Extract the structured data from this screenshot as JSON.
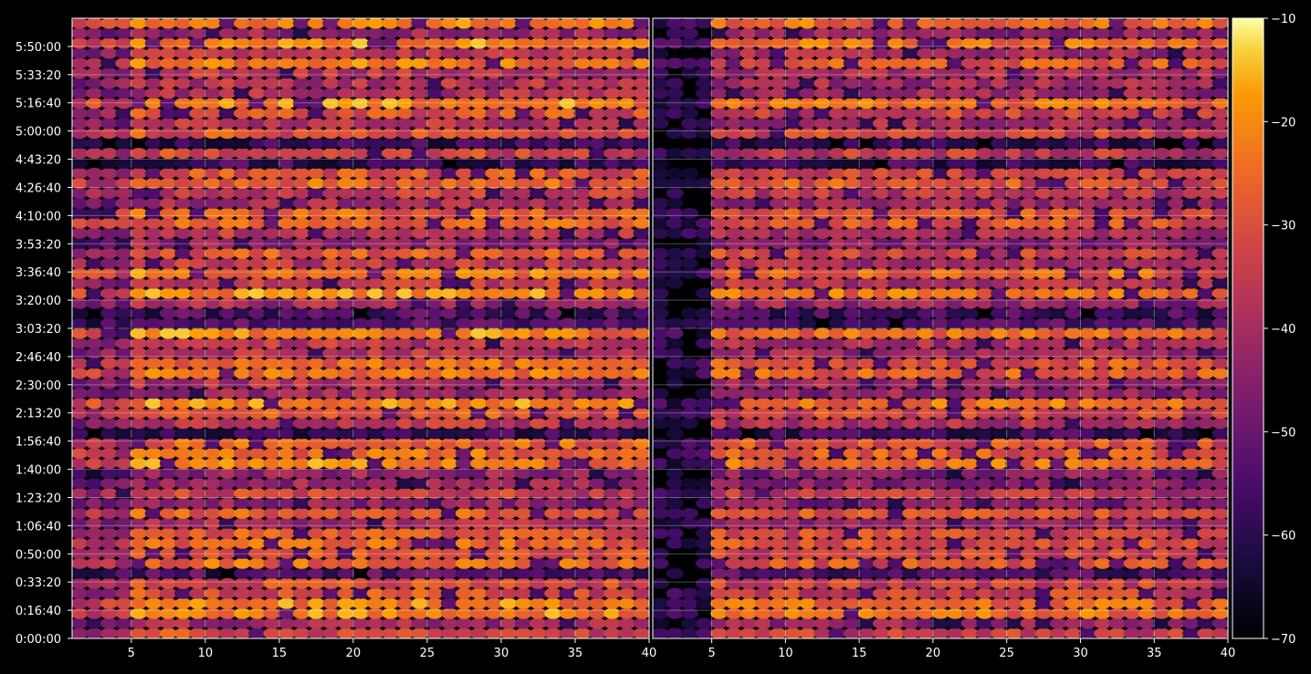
{
  "chart_data": {
    "type": "heatmap",
    "colormap": "inferno",
    "background": "#000000",
    "grid": true,
    "panels": [
      {
        "name": "",
        "xlim": [
          1,
          40
        ]
      },
      {
        "name": "",
        "xlim": [
          1,
          40
        ]
      }
    ],
    "x_ticks": [
      "5",
      "10",
      "15",
      "20",
      "25",
      "30",
      "35",
      "40"
    ],
    "y_ticks": [
      "0:00:00",
      "0:16:40",
      "0:33:20",
      "0:50:00",
      "1:06:40",
      "1:23:20",
      "1:40:00",
      "1:56:40",
      "2:13:20",
      "2:30:00",
      "2:46:40",
      "3:03:20",
      "3:20:00",
      "3:36:40",
      "3:53:20",
      "4:10:00",
      "4:26:40",
      "4:43:20",
      "5:00:00",
      "5:16:40",
      "5:33:20",
      "5:50:00"
    ],
    "y_range_seconds": [
      0,
      21600
    ],
    "colorbar": {
      "min": -70,
      "max": -10,
      "ticks": [
        "−10",
        "−20",
        "−30",
        "−40",
        "−50",
        "−60",
        "−70"
      ]
    },
    "xlabel": "",
    "ylabel": "",
    "title": ""
  }
}
